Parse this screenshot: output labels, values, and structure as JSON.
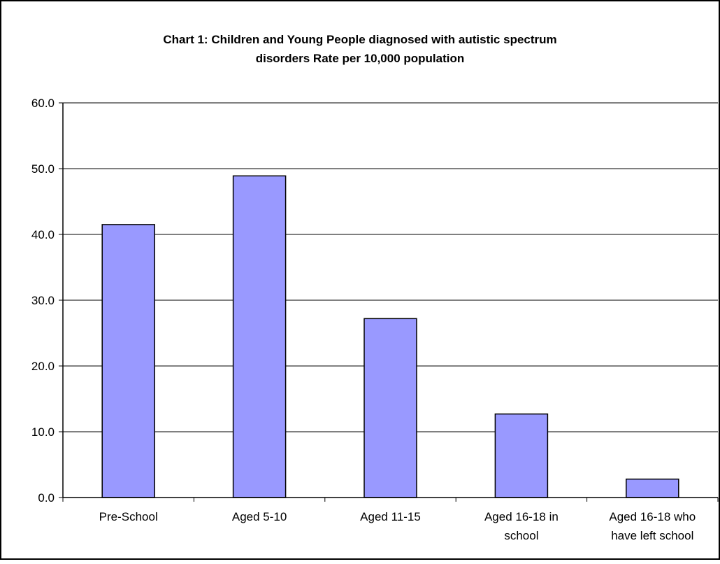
{
  "chart_data": {
    "type": "bar",
    "title_lines": [
      "Chart 1: Children and Young People diagnosed with autistic spectrum",
      "disorders Rate per 10,000 population"
    ],
    "categories": [
      [
        "Pre-School"
      ],
      [
        "Aged 5-10"
      ],
      [
        "Aged 11-15"
      ],
      [
        "Aged 16-18 in",
        "school"
      ],
      [
        "Aged 16-18 who",
        "have left school"
      ]
    ],
    "values": [
      41.5,
      48.9,
      27.2,
      12.7,
      2.8
    ],
    "ylim": [
      0,
      60
    ],
    "y_ticks": [
      "0.0",
      "10.0",
      "20.0",
      "30.0",
      "40.0",
      "50.0",
      "60.0"
    ],
    "grid": true,
    "legend": "none",
    "bar_color": "#9999ff",
    "bar_edge_color": "#000000"
  }
}
